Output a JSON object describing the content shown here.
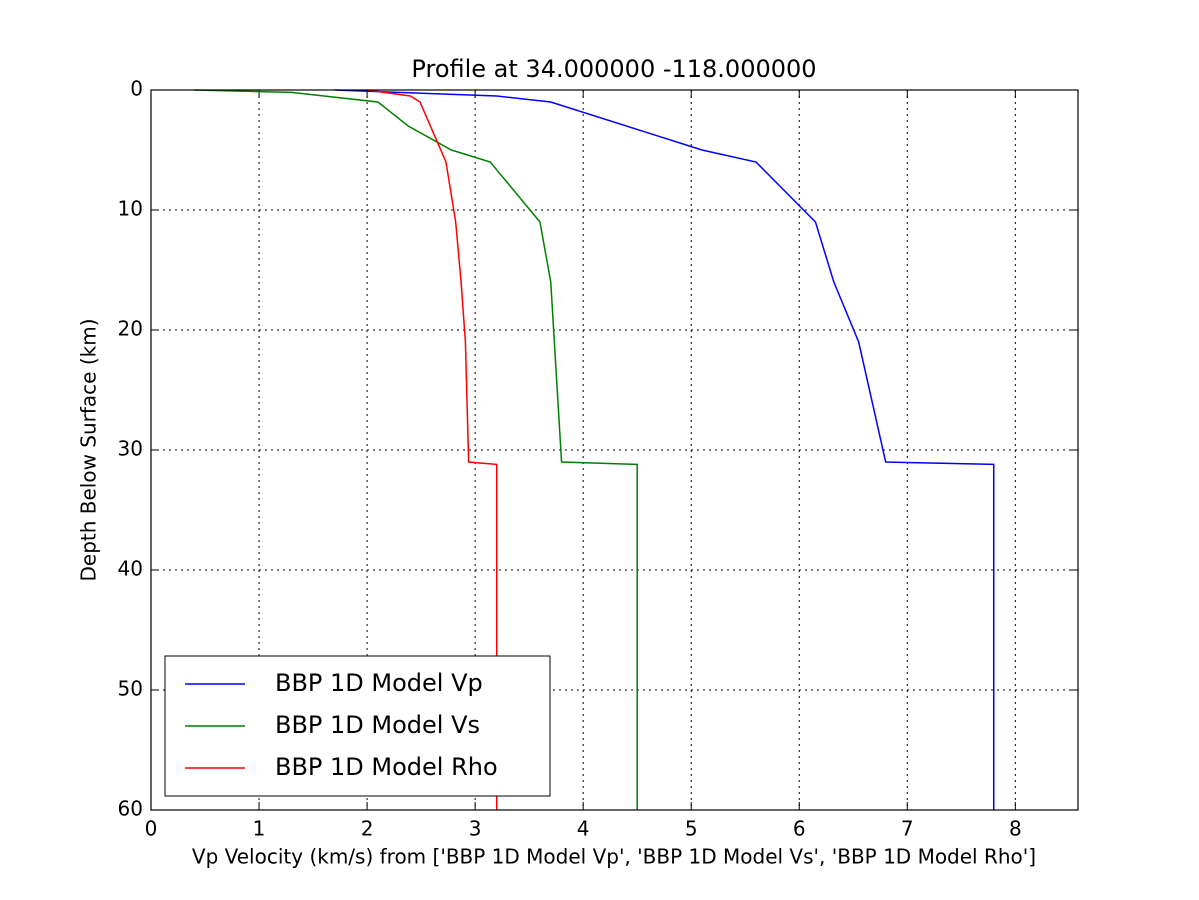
{
  "chart_data": {
    "type": "line",
    "title": "Profile at 34.000000 -118.000000",
    "x_label": "Vp Velocity (km/s) from ['BBP 1D Model Vp', 'BBP 1D Model Vs', 'BBP 1D Model Rho']",
    "y_label": "Depth Below Surface (km)",
    "xlim": [
      0,
      8.58
    ],
    "xticks": [
      0,
      1,
      2,
      3,
      4,
      5,
      6,
      7,
      8
    ],
    "ylim": [
      60,
      0
    ],
    "yticks": [
      0,
      10,
      20,
      30,
      40,
      50,
      60
    ],
    "grid": true,
    "legend": "lower-left",
    "series": [
      {
        "name": "BBP 1D Model Vp",
        "color": "#0000ff",
        "x": [
          1.7,
          3.2,
          3.7,
          5.1,
          5.6,
          6.15,
          6.32,
          6.55,
          6.8,
          7.8,
          7.8
        ],
        "values": [
          0,
          0.5,
          1,
          5,
          6,
          11,
          16,
          21,
          31,
          31.2,
          60
        ]
      },
      {
        "name": "BBP 1D Model Vs",
        "color": "#008000",
        "x": [
          0.4,
          1.3,
          2.1,
          2.38,
          2.78,
          3.14,
          3.6,
          3.7,
          3.8,
          4.5,
          4.5
        ],
        "values": [
          0,
          0.2,
          1,
          3,
          5,
          6,
          11,
          16,
          31,
          31.2,
          60
        ]
      },
      {
        "name": "BBP 1D Model Rho",
        "color": "#ff0000",
        "x": [
          2.0,
          2.4,
          2.49,
          2.73,
          2.82,
          2.87,
          2.91,
          2.94,
          3.2,
          3.2
        ],
        "values": [
          0,
          0.5,
          1,
          6,
          11,
          16,
          21,
          31,
          31.2,
          60
        ]
      }
    ]
  }
}
